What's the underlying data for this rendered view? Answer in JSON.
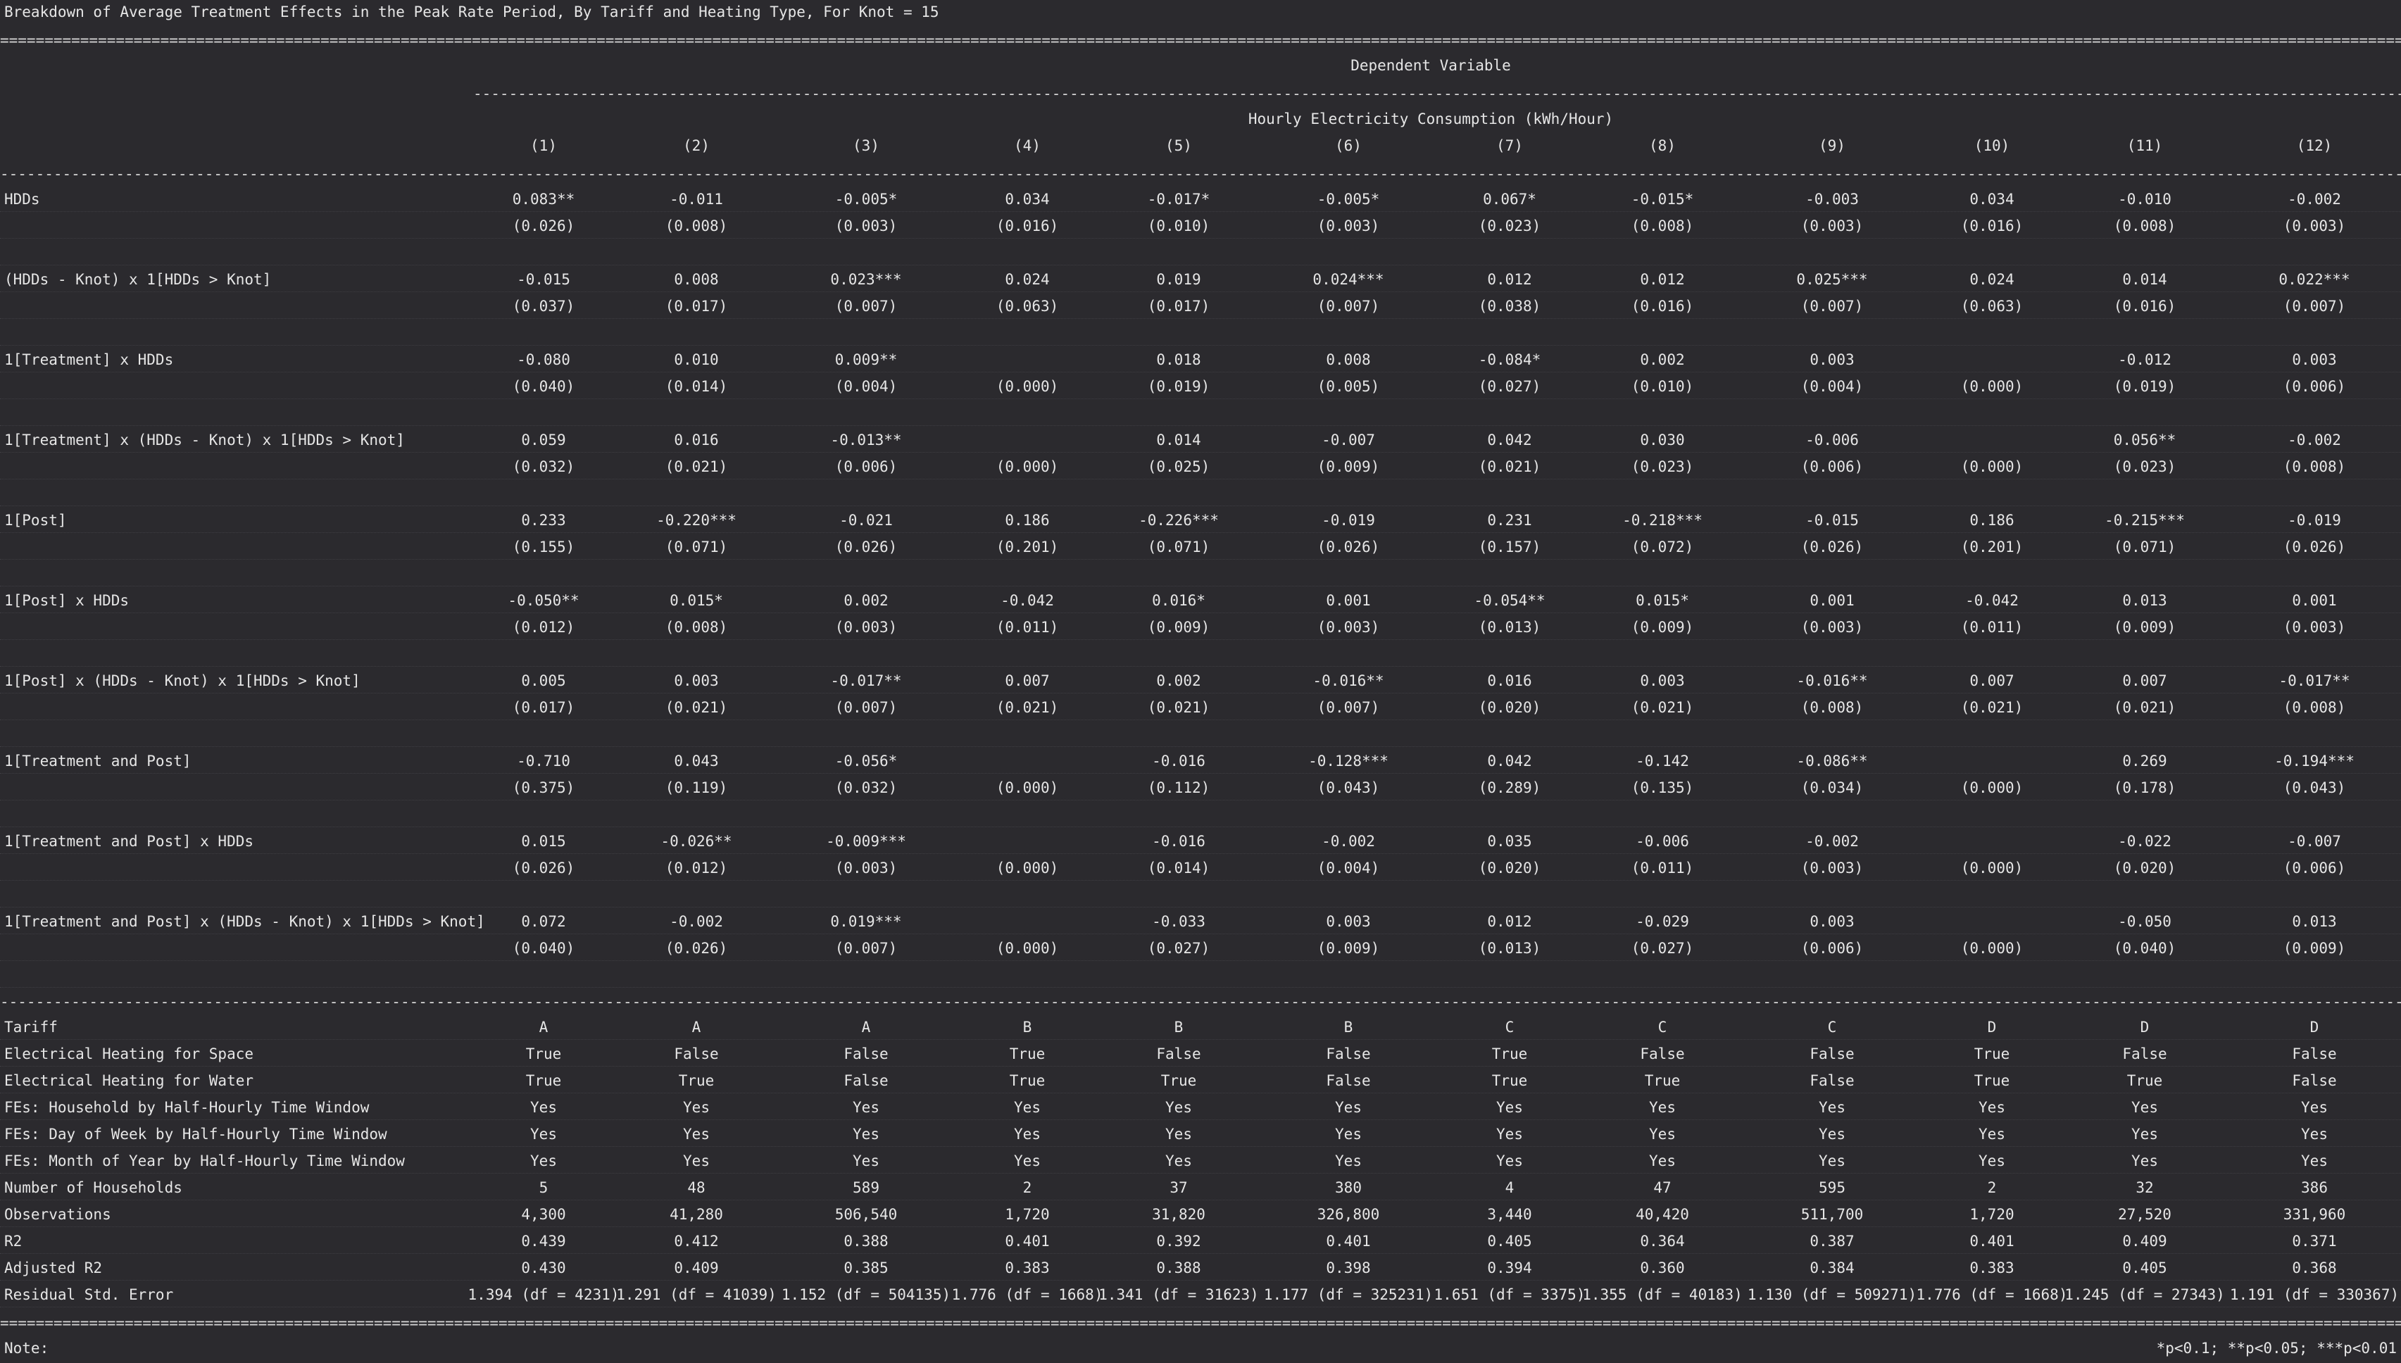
{
  "title": "Breakdown of Average Treatment Effects in the Peak Rate Period, By Tariff and Heating Type, For Knot = 15",
  "header": {
    "dependent_variable_label": "Dependent Variable",
    "variable_name": "Hourly Electricity Consumption (kWh/Hour)",
    "columns": [
      "(1)",
      "(2)",
      "(3)",
      "(4)",
      "(5)",
      "(6)",
      "(7)",
      "(8)",
      "(9)",
      "(10)",
      "(11)",
      "(12)"
    ]
  },
  "coefficients": [
    {
      "name": "HDDs",
      "est": [
        "0.083**",
        "-0.011",
        "-0.005*",
        "0.034",
        "-0.017*",
        "-0.005*",
        "0.067*",
        "-0.015*",
        "-0.003",
        "0.034",
        "-0.010",
        "-0.002"
      ],
      "se": [
        "(0.026)",
        "(0.008)",
        "(0.003)",
        "(0.016)",
        "(0.010)",
        "(0.003)",
        "(0.023)",
        "(0.008)",
        "(0.003)",
        "(0.016)",
        "(0.008)",
        "(0.003)"
      ]
    },
    {
      "name": "(HDDs - Knot) x 1[HDDs > Knot]",
      "est": [
        "-0.015",
        "0.008",
        "0.023***",
        "0.024",
        "0.019",
        "0.024***",
        "0.012",
        "0.012",
        "0.025***",
        "0.024",
        "0.014",
        "0.022***"
      ],
      "se": [
        "(0.037)",
        "(0.017)",
        "(0.007)",
        "(0.063)",
        "(0.017)",
        "(0.007)",
        "(0.038)",
        "(0.016)",
        "(0.007)",
        "(0.063)",
        "(0.016)",
        "(0.007)"
      ]
    },
    {
      "name": "1[Treatment] x HDDs",
      "est": [
        "-0.080",
        "0.010",
        "0.009**",
        "",
        "0.018",
        "0.008",
        "-0.084*",
        "0.002",
        "0.003",
        "",
        "-0.012",
        "0.003"
      ],
      "se": [
        "(0.040)",
        "(0.014)",
        "(0.004)",
        "(0.000)",
        "(0.019)",
        "(0.005)",
        "(0.027)",
        "(0.010)",
        "(0.004)",
        "(0.000)",
        "(0.019)",
        "(0.006)"
      ]
    },
    {
      "name": "1[Treatment] x (HDDs - Knot) x 1[HDDs > Knot]",
      "est": [
        "0.059",
        "0.016",
        "-0.013**",
        "",
        "0.014",
        "-0.007",
        "0.042",
        "0.030",
        "-0.006",
        "",
        "0.056**",
        "-0.002"
      ],
      "se": [
        "(0.032)",
        "(0.021)",
        "(0.006)",
        "(0.000)",
        "(0.025)",
        "(0.009)",
        "(0.021)",
        "(0.023)",
        "(0.006)",
        "(0.000)",
        "(0.023)",
        "(0.008)"
      ]
    },
    {
      "name": "1[Post]",
      "est": [
        "0.233",
        "-0.220***",
        "-0.021",
        "0.186",
        "-0.226***",
        "-0.019",
        "0.231",
        "-0.218***",
        "-0.015",
        "0.186",
        "-0.215***",
        "-0.019"
      ],
      "se": [
        "(0.155)",
        "(0.071)",
        "(0.026)",
        "(0.201)",
        "(0.071)",
        "(0.026)",
        "(0.157)",
        "(0.072)",
        "(0.026)",
        "(0.201)",
        "(0.071)",
        "(0.026)"
      ]
    },
    {
      "name": "1[Post] x HDDs",
      "est": [
        "-0.050**",
        "0.015*",
        "0.002",
        "-0.042",
        "0.016*",
        "0.001",
        "-0.054**",
        "0.015*",
        "0.001",
        "-0.042",
        "0.013",
        "0.001"
      ],
      "se": [
        "(0.012)",
        "(0.008)",
        "(0.003)",
        "(0.011)",
        "(0.009)",
        "(0.003)",
        "(0.013)",
        "(0.009)",
        "(0.003)",
        "(0.011)",
        "(0.009)",
        "(0.003)"
      ]
    },
    {
      "name": "1[Post] x (HDDs - Knot) x 1[HDDs > Knot]",
      "est": [
        "0.005",
        "0.003",
        "-0.017**",
        "0.007",
        "0.002",
        "-0.016**",
        "0.016",
        "0.003",
        "-0.016**",
        "0.007",
        "0.007",
        "-0.017**"
      ],
      "se": [
        "(0.017)",
        "(0.021)",
        "(0.007)",
        "(0.021)",
        "(0.021)",
        "(0.007)",
        "(0.020)",
        "(0.021)",
        "(0.008)",
        "(0.021)",
        "(0.021)",
        "(0.008)"
      ]
    },
    {
      "name": "1[Treatment and Post]",
      "est": [
        "-0.710",
        "0.043",
        "-0.056*",
        "",
        "-0.016",
        "-0.128***",
        "0.042",
        "-0.142",
        "-0.086**",
        "",
        "0.269",
        "-0.194***"
      ],
      "se": [
        "(0.375)",
        "(0.119)",
        "(0.032)",
        "(0.000)",
        "(0.112)",
        "(0.043)",
        "(0.289)",
        "(0.135)",
        "(0.034)",
        "(0.000)",
        "(0.178)",
        "(0.043)"
      ]
    },
    {
      "name": "1[Treatment and Post] x HDDs",
      "est": [
        "0.015",
        "-0.026**",
        "-0.009***",
        "",
        "-0.016",
        "-0.002",
        "0.035",
        "-0.006",
        "-0.002",
        "",
        "-0.022",
        "-0.007"
      ],
      "se": [
        "(0.026)",
        "(0.012)",
        "(0.003)",
        "(0.000)",
        "(0.014)",
        "(0.004)",
        "(0.020)",
        "(0.011)",
        "(0.003)",
        "(0.000)",
        "(0.020)",
        "(0.006)"
      ]
    },
    {
      "name": "1[Treatment and Post] x (HDDs - Knot) x 1[HDDs > Knot]",
      "est": [
        "0.072",
        "-0.002",
        "0.019***",
        "",
        "-0.033",
        "0.003",
        "0.012",
        "-0.029",
        "0.003",
        "",
        "-0.050",
        "0.013"
      ],
      "se": [
        "(0.040)",
        "(0.026)",
        "(0.007)",
        "(0.000)",
        "(0.027)",
        "(0.009)",
        "(0.013)",
        "(0.027)",
        "(0.006)",
        "(0.000)",
        "(0.040)",
        "(0.009)"
      ]
    }
  ],
  "summary": [
    {
      "name": "Tariff",
      "values": [
        "A",
        "A",
        "A",
        "B",
        "B",
        "B",
        "C",
        "C",
        "C",
        "D",
        "D",
        "D"
      ]
    },
    {
      "name": "Electrical Heating for Space",
      "values": [
        "True",
        "False",
        "False",
        "True",
        "False",
        "False",
        "True",
        "False",
        "False",
        "True",
        "False",
        "False"
      ]
    },
    {
      "name": "Electrical Heating for Water",
      "values": [
        "True",
        "True",
        "False",
        "True",
        "True",
        "False",
        "True",
        "True",
        "False",
        "True",
        "True",
        "False"
      ]
    },
    {
      "name": "FEs: Household by Half-Hourly Time Window",
      "values": [
        "Yes",
        "Yes",
        "Yes",
        "Yes",
        "Yes",
        "Yes",
        "Yes",
        "Yes",
        "Yes",
        "Yes",
        "Yes",
        "Yes"
      ]
    },
    {
      "name": "FEs: Day of Week by Half-Hourly Time Window",
      "values": [
        "Yes",
        "Yes",
        "Yes",
        "Yes",
        "Yes",
        "Yes",
        "Yes",
        "Yes",
        "Yes",
        "Yes",
        "Yes",
        "Yes"
      ]
    },
    {
      "name": "FEs: Month of Year by Half-Hourly Time Window",
      "values": [
        "Yes",
        "Yes",
        "Yes",
        "Yes",
        "Yes",
        "Yes",
        "Yes",
        "Yes",
        "Yes",
        "Yes",
        "Yes",
        "Yes"
      ]
    },
    {
      "name": "Number of Households",
      "values": [
        "5",
        "48",
        "589",
        "2",
        "37",
        "380",
        "4",
        "47",
        "595",
        "2",
        "32",
        "386"
      ]
    },
    {
      "name": "Observations",
      "values": [
        "4,300",
        "41,280",
        "506,540",
        "1,720",
        "31,820",
        "326,800",
        "3,440",
        "40,420",
        "511,700",
        "1,720",
        "27,520",
        "331,960"
      ]
    },
    {
      "name": "R2",
      "values": [
        "0.439",
        "0.412",
        "0.388",
        "0.401",
        "0.392",
        "0.401",
        "0.405",
        "0.364",
        "0.387",
        "0.401",
        "0.409",
        "0.371"
      ]
    },
    {
      "name": "Adjusted R2",
      "values": [
        "0.430",
        "0.409",
        "0.385",
        "0.383",
        "0.388",
        "0.398",
        "0.394",
        "0.360",
        "0.384",
        "0.383",
        "0.405",
        "0.368"
      ]
    },
    {
      "name": "Residual Std. Error",
      "values": [
        "1.394 (df = 4231)",
        "1.291 (df = 41039)",
        "1.152 (df = 504135)",
        "1.776 (df = 1668)",
        "1.341 (df = 31623)",
        "1.177 (df = 325231)",
        "1.651 (df = 3375)",
        "1.355 (df = 40183)",
        "1.130 (df = 509271)",
        "1.776 (df = 1668)",
        "1.245 (df = 27343)",
        "1.191 (df = 330367)"
      ]
    }
  ],
  "note": {
    "label": "Note:",
    "significance": "*p<0.1; **p<0.05; ***p<0.01"
  }
}
